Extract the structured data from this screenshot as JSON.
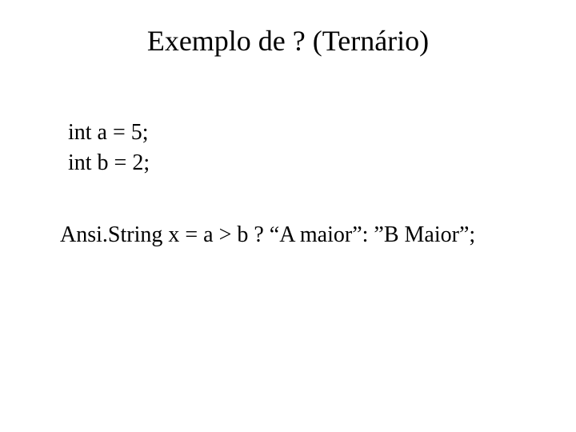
{
  "slide": {
    "title": "Exemplo de ? (Ternário)",
    "background_color": "#ffffff",
    "text_color": "#000000",
    "title_fontsize": 36,
    "body_fontsize": 28,
    "font_family": "Times New Roman"
  },
  "code": {
    "line1": "int a = 5;",
    "line2": "int b = 2;",
    "line3": "Ansi.String x = a > b ? “A maior”: ”B Maior”;"
  }
}
